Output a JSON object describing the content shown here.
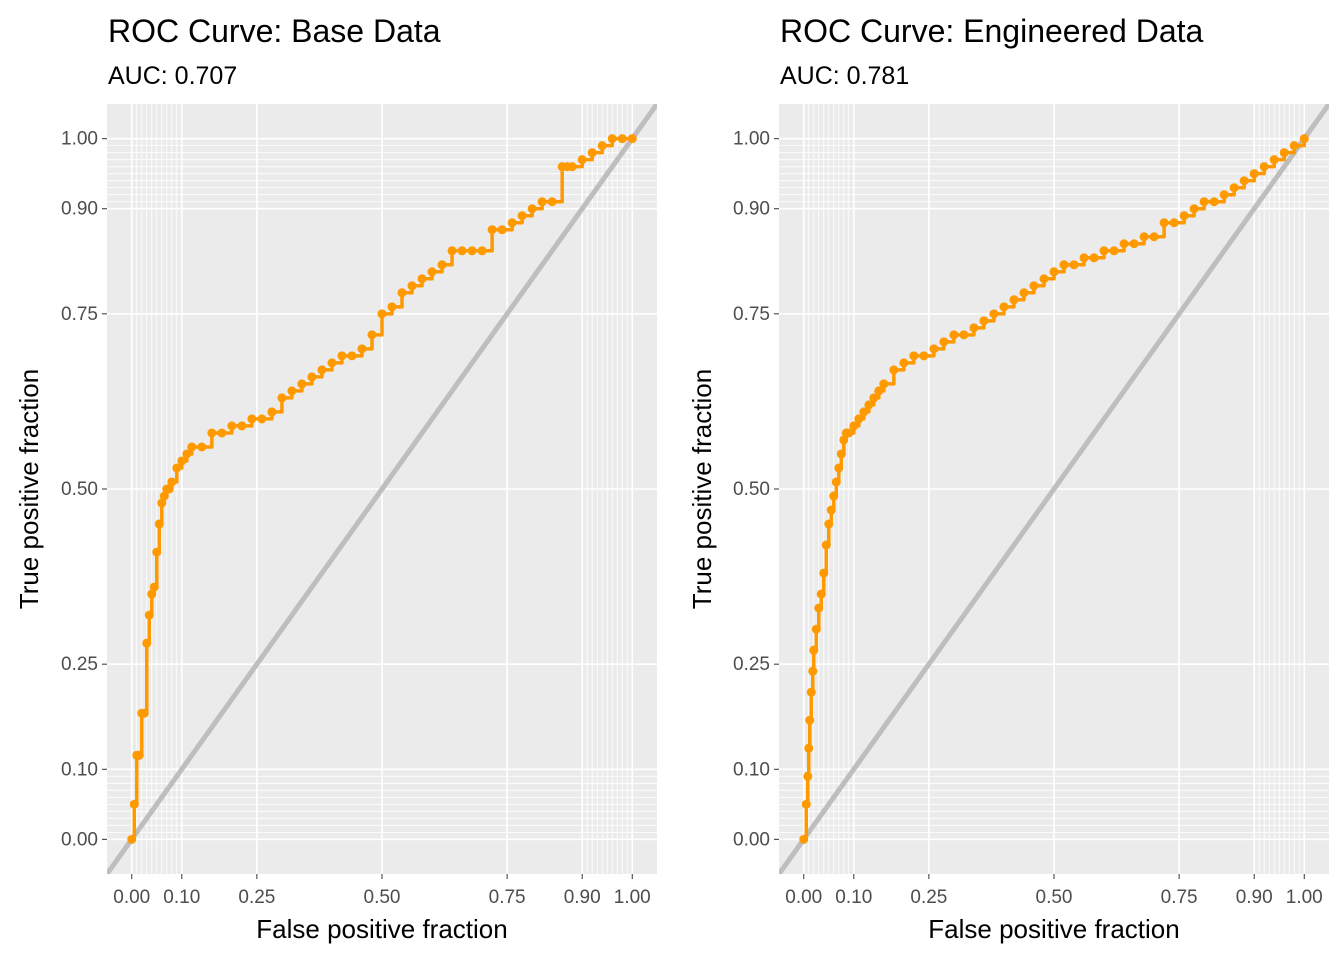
{
  "colors": {
    "panel_bg": "#ebebeb",
    "grid": "#ffffff",
    "curve": "#ff9900",
    "diagonal": "#bebebe",
    "tick": "#333333"
  },
  "chart_data": [
    {
      "type": "line",
      "title": "ROC Curve: Base Data",
      "subtitle": "AUC: 0.707",
      "xlabel": "False positive fraction",
      "ylabel": "True positive fraction",
      "xlim": [
        0,
        1
      ],
      "ylim": [
        0,
        1
      ],
      "x_ticks": [
        0,
        0.1,
        0.25,
        0.5,
        0.75,
        0.9,
        1.0
      ],
      "x_tick_labels": [
        "0.00",
        "0.10",
        "0.25",
        "0.50",
        "0.75",
        "0.90",
        "1.00"
      ],
      "y_ticks": [
        0,
        0.1,
        0.25,
        0.5,
        0.75,
        0.9,
        1.0
      ],
      "y_tick_labels": [
        "0.00",
        "0.10",
        "0.25",
        "0.50",
        "0.75",
        "0.90",
        "1.00"
      ],
      "minor_ticks": [
        0.01,
        0.02,
        0.03,
        0.04,
        0.05,
        0.06,
        0.07,
        0.08,
        0.09,
        0.91,
        0.92,
        0.93,
        0.94,
        0.95,
        0.96,
        0.97,
        0.98,
        0.99
      ],
      "grid": true,
      "legend": "none",
      "series": [
        {
          "x": [
            0.0,
            0.005,
            0.01,
            0.015,
            0.02,
            0.025,
            0.03,
            0.035,
            0.04,
            0.045,
            0.05,
            0.055,
            0.06,
            0.065,
            0.07,
            0.075,
            0.08,
            0.09,
            0.1,
            0.11,
            0.12,
            0.14,
            0.16,
            0.18,
            0.2,
            0.22,
            0.24,
            0.26,
            0.28,
            0.3,
            0.32,
            0.34,
            0.36,
            0.38,
            0.4,
            0.42,
            0.44,
            0.46,
            0.48,
            0.5,
            0.52,
            0.54,
            0.56,
            0.58,
            0.6,
            0.62,
            0.64,
            0.66,
            0.68,
            0.7,
            0.72,
            0.74,
            0.76,
            0.78,
            0.8,
            0.82,
            0.84,
            0.86,
            0.87,
            0.88,
            0.9,
            0.92,
            0.94,
            0.96,
            0.98,
            1.0
          ],
          "y": [
            0.0,
            0.05,
            0.12,
            0.12,
            0.18,
            0.18,
            0.28,
            0.32,
            0.35,
            0.36,
            0.41,
            0.45,
            0.48,
            0.49,
            0.5,
            0.5,
            0.51,
            0.53,
            0.54,
            0.55,
            0.56,
            0.56,
            0.58,
            0.58,
            0.59,
            0.59,
            0.6,
            0.6,
            0.61,
            0.63,
            0.64,
            0.65,
            0.66,
            0.67,
            0.68,
            0.69,
            0.69,
            0.7,
            0.72,
            0.75,
            0.76,
            0.78,
            0.79,
            0.8,
            0.81,
            0.82,
            0.84,
            0.84,
            0.84,
            0.84,
            0.87,
            0.87,
            0.88,
            0.89,
            0.9,
            0.91,
            0.91,
            0.96,
            0.96,
            0.96,
            0.97,
            0.98,
            0.99,
            1.0,
            1.0,
            1.0
          ]
        }
      ]
    },
    {
      "type": "line",
      "title": "ROC Curve: Engineered Data",
      "subtitle": "AUC: 0.781",
      "xlabel": "False positive fraction",
      "ylabel": "True positive fraction",
      "xlim": [
        0,
        1
      ],
      "ylim": [
        0,
        1
      ],
      "x_ticks": [
        0,
        0.1,
        0.25,
        0.5,
        0.75,
        0.9,
        1.0
      ],
      "x_tick_labels": [
        "0.00",
        "0.10",
        "0.25",
        "0.50",
        "0.75",
        "0.90",
        "1.00"
      ],
      "y_ticks": [
        0,
        0.1,
        0.25,
        0.5,
        0.75,
        0.9,
        1.0
      ],
      "y_tick_labels": [
        "0.00",
        "0.10",
        "0.25",
        "0.50",
        "0.75",
        "0.90",
        "1.00"
      ],
      "minor_ticks": [
        0.01,
        0.02,
        0.03,
        0.04,
        0.05,
        0.06,
        0.07,
        0.08,
        0.09,
        0.91,
        0.92,
        0.93,
        0.94,
        0.95,
        0.96,
        0.97,
        0.98,
        0.99
      ],
      "grid": true,
      "legend": "none",
      "series": [
        {
          "x": [
            0.0,
            0.005,
            0.008,
            0.01,
            0.012,
            0.015,
            0.018,
            0.02,
            0.025,
            0.03,
            0.035,
            0.04,
            0.045,
            0.05,
            0.055,
            0.06,
            0.065,
            0.07,
            0.075,
            0.08,
            0.085,
            0.09,
            0.1,
            0.11,
            0.12,
            0.13,
            0.14,
            0.15,
            0.16,
            0.18,
            0.2,
            0.22,
            0.24,
            0.26,
            0.28,
            0.3,
            0.32,
            0.34,
            0.36,
            0.38,
            0.4,
            0.42,
            0.44,
            0.46,
            0.48,
            0.5,
            0.52,
            0.54,
            0.56,
            0.58,
            0.6,
            0.62,
            0.64,
            0.66,
            0.68,
            0.7,
            0.72,
            0.74,
            0.76,
            0.78,
            0.8,
            0.82,
            0.84,
            0.86,
            0.88,
            0.9,
            0.92,
            0.94,
            0.96,
            0.98,
            1.0
          ],
          "y": [
            0.0,
            0.05,
            0.09,
            0.13,
            0.17,
            0.21,
            0.24,
            0.27,
            0.3,
            0.33,
            0.35,
            0.38,
            0.42,
            0.45,
            0.47,
            0.49,
            0.51,
            0.53,
            0.55,
            0.57,
            0.58,
            0.58,
            0.59,
            0.6,
            0.61,
            0.62,
            0.63,
            0.64,
            0.65,
            0.67,
            0.68,
            0.69,
            0.69,
            0.7,
            0.71,
            0.72,
            0.72,
            0.73,
            0.74,
            0.75,
            0.76,
            0.77,
            0.78,
            0.79,
            0.8,
            0.81,
            0.82,
            0.82,
            0.83,
            0.83,
            0.84,
            0.84,
            0.85,
            0.85,
            0.86,
            0.86,
            0.88,
            0.88,
            0.89,
            0.9,
            0.91,
            0.91,
            0.92,
            0.93,
            0.94,
            0.95,
            0.96,
            0.97,
            0.98,
            0.99,
            1.0
          ]
        }
      ]
    }
  ]
}
